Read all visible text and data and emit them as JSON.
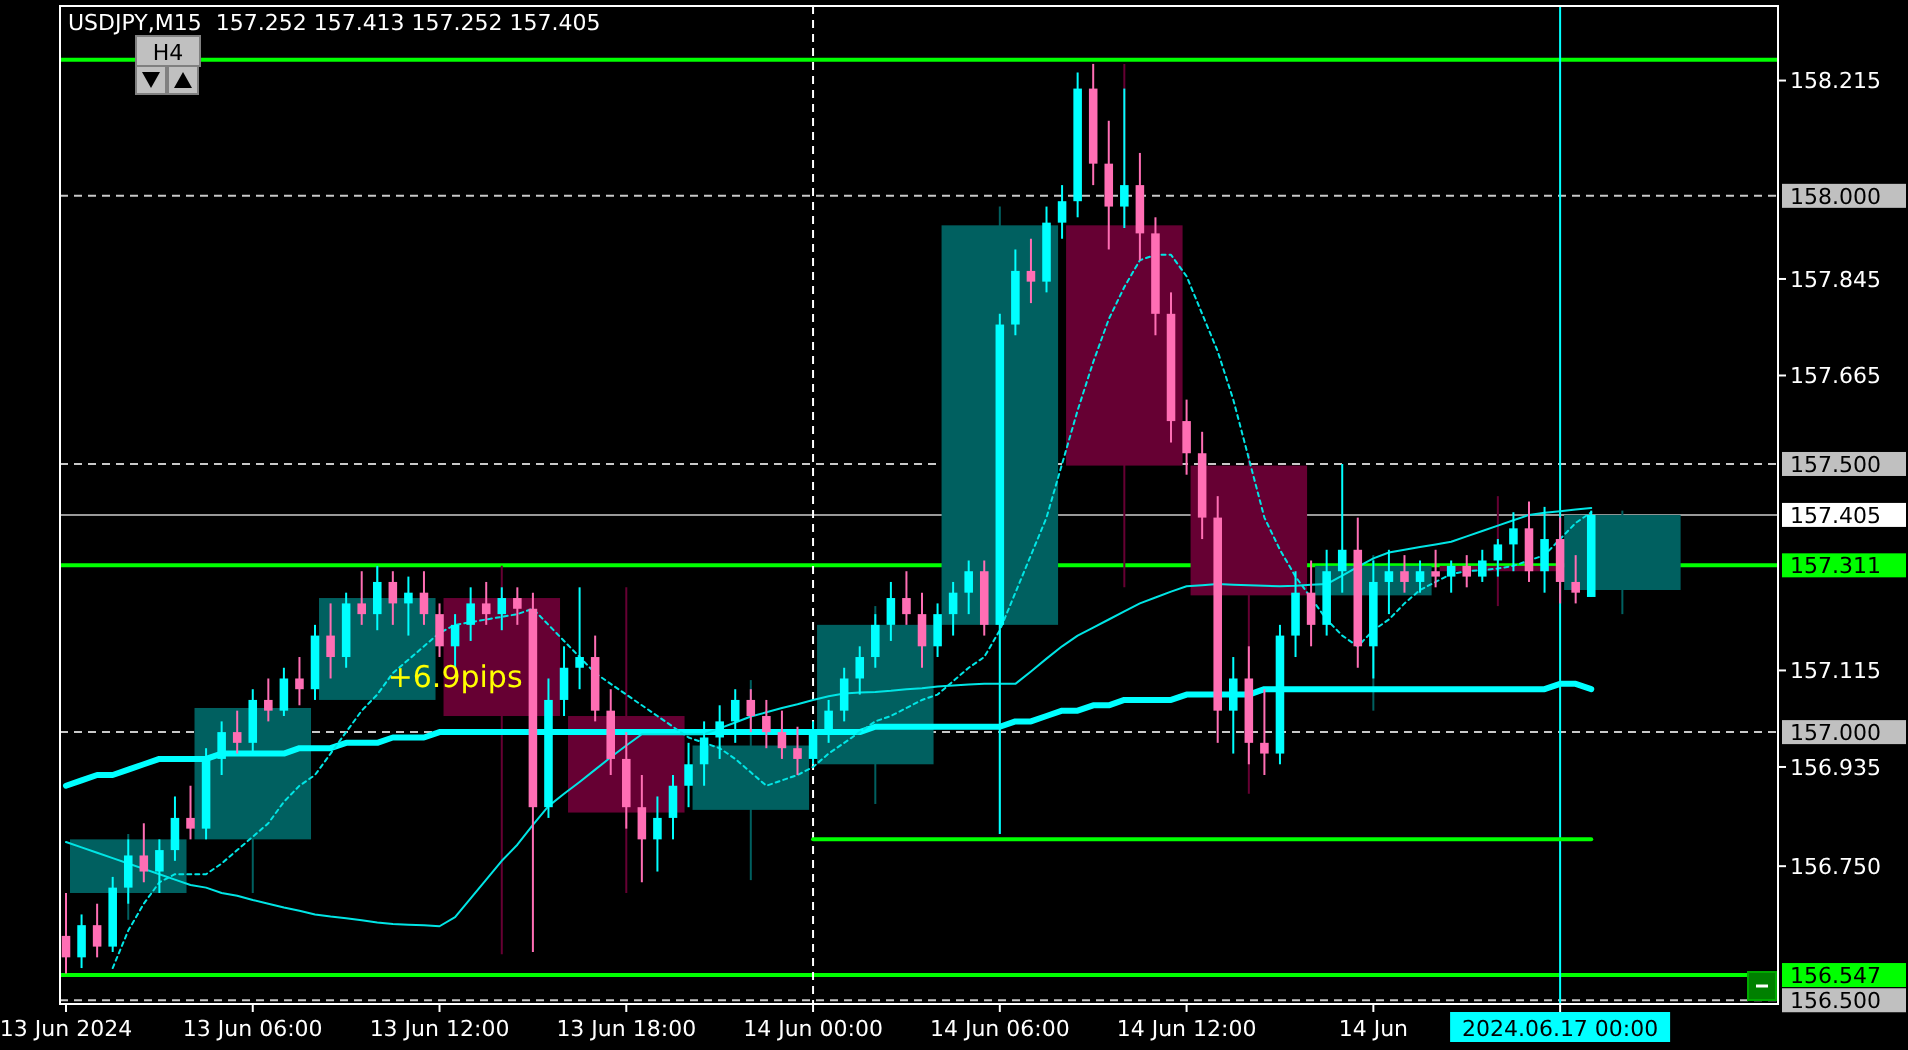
{
  "chart_data": {
    "type": "candlestick",
    "title": "USDJPY,M15  157.252 157.413 157.252 157.405",
    "categories": [
      "13 Jun 2024",
      null,
      null,
      null,
      null,
      null,
      null,
      null,
      null,
      null,
      null,
      null,
      "13 Jun 06:00",
      null,
      null,
      null,
      null,
      null,
      null,
      null,
      null,
      null,
      null,
      null,
      "13 Jun 12:00",
      null,
      null,
      null,
      null,
      null,
      null,
      null,
      null,
      null,
      null,
      null,
      "13 Jun 18:00",
      null,
      null,
      null,
      null,
      null,
      null,
      null,
      null,
      null,
      null,
      null,
      "14 Jun 00:00",
      null,
      null,
      null,
      null,
      null,
      null,
      null,
      null,
      null,
      null,
      null,
      "14 Jun 06:00",
      null,
      null,
      null,
      null,
      null,
      null,
      null,
      null,
      null,
      null,
      null,
      "14 Jun 12:00",
      null,
      null,
      null,
      null,
      null,
      null,
      null,
      null,
      null,
      null,
      null,
      "14 Jun",
      null,
      null,
      null,
      null,
      null,
      null,
      null,
      null,
      null,
      null,
      null,
      "2024.06.17 00:00",
      null,
      null,
      null,
      null,
      null,
      null,
      null
    ],
    "ylim": [
      156.493,
      158.354
    ],
    "yticks": [
      {
        "value": 158.215,
        "label": "158.215"
      },
      {
        "value": 157.845,
        "label": "157.845"
      },
      {
        "value": 157.665,
        "label": "157.665"
      },
      {
        "value": 157.115,
        "label": "157.115"
      },
      {
        "value": 156.935,
        "label": "156.935"
      },
      {
        "value": 156.75,
        "label": "156.750"
      }
    ],
    "annotations": [
      "H4",
      "+6.9pips"
    ],
    "ref_lines": [
      {
        "axis": "y",
        "value": 158.0,
        "label": "158.000",
        "color": "#c8c8c8",
        "line_style": "dashed"
      },
      {
        "axis": "y",
        "value": 157.5,
        "label": "157.500",
        "color": "#c8c8c8",
        "line_style": "dashed"
      },
      {
        "axis": "y",
        "value": 157.0,
        "label": "157.000",
        "color": "#c8c8c8",
        "line_style": "dashed"
      },
      {
        "axis": "y",
        "value": 156.5,
        "label": "156.500",
        "color": "#c8c8c8",
        "line_style": "dashed"
      },
      {
        "axis": "y",
        "value": 157.405,
        "label": "157.405",
        "color": "#9a9a9a",
        "line_style": "solid"
      },
      {
        "axis": "y",
        "value": 157.311,
        "label": "157.311",
        "color": "#00ff00",
        "line_style": "solid"
      },
      {
        "axis": "y",
        "value": 156.547,
        "label": "156.547",
        "color": "#00ff00",
        "line_style": "solid"
      },
      {
        "axis": "y",
        "value": 158.254,
        "color": "#00ff00",
        "line_style": "solid"
      },
      {
        "axis": "x",
        "value": "14 Jun 00:00",
        "color": "#ffffff",
        "line_style": "dashed"
      },
      {
        "axis": "x",
        "value": "2024.06.17 00:00",
        "color": "#00ffff",
        "line_style": "solid"
      }
    ],
    "series": [
      {
        "ohlc": [
          null,
          null,
          null,
          null,
          [
            156.7,
            156.81,
            156.65,
            156.8
          ],
          null,
          null,
          null,
          null,
          null,
          null,
          null,
          [
            156.8,
            157.05,
            156.7,
            157.045
          ],
          null,
          null,
          null,
          null,
          null,
          null,
          null,
          [
            157.06,
            157.31,
            157.06,
            157.25
          ],
          null,
          null,
          null,
          null,
          null,
          null,
          null,
          [
            157.25,
            157.31,
            156.586,
            157.03
          ],
          null,
          null,
          null,
          null,
          null,
          null,
          null,
          [
            157.03,
            157.27,
            156.7,
            156.85
          ],
          null,
          null,
          null,
          null,
          null,
          null,
          null,
          [
            156.855,
            157.097,
            156.724,
            156.975
          ],
          null,
          null,
          null,
          null,
          null,
          null,
          null,
          [
            156.94,
            157.235,
            156.866,
            157.2
          ],
          null,
          null,
          null,
          null,
          null,
          null,
          null,
          [
            157.2,
            157.98,
            156.81,
            157.945
          ],
          null,
          null,
          null,
          null,
          null,
          null,
          null,
          [
            157.945,
            158.246,
            157.27,
            157.497
          ],
          null,
          null,
          null,
          null,
          null,
          null,
          null,
          [
            157.497,
            157.52,
            156.885,
            157.255
          ],
          null,
          null,
          null,
          null,
          null,
          null,
          null,
          [
            157.255,
            157.33,
            157.04,
            157.31
          ],
          null,
          null,
          null,
          null,
          null,
          null,
          null,
          [
            157.31,
            157.44,
            157.235,
            157.3
          ],
          null,
          null,
          null,
          null,
          null,
          null,
          null,
          [
            157.265,
            157.413,
            157.22,
            157.405
          ],
          null,
          null,
          null
        ],
        "colors": [
          null,
          null,
          null,
          null,
          "#006060",
          null,
          null,
          null,
          null,
          null,
          null,
          null,
          "#006060",
          null,
          null,
          null,
          null,
          null,
          null,
          null,
          "#006060",
          null,
          null,
          null,
          null,
          null,
          null,
          null,
          "#660033",
          null,
          null,
          null,
          null,
          null,
          null,
          null,
          "#660033",
          null,
          null,
          null,
          null,
          null,
          null,
          null,
          "#006060",
          null,
          null,
          null,
          null,
          null,
          null,
          null,
          "#006060",
          null,
          null,
          null,
          null,
          null,
          null,
          null,
          "#006060",
          null,
          null,
          null,
          null,
          null,
          null,
          null,
          "#660033",
          null,
          null,
          null,
          null,
          null,
          null,
          null,
          "#660033",
          null,
          null,
          null,
          null,
          null,
          null,
          null,
          "#006060",
          null,
          null,
          null,
          null,
          null,
          null,
          null,
          "#660033",
          null,
          null,
          null,
          null,
          null,
          null,
          null,
          "#006060",
          null,
          null,
          null
        ]
      },
      {
        "type": "line",
        "line_style": "solid",
        "color": "#00ffff",
        "values": [
          156.9,
          156.91,
          156.92,
          156.92,
          156.93,
          156.94,
          156.95,
          156.95,
          156.95,
          156.95,
          156.96,
          156.96,
          156.96,
          156.96,
          156.96,
          156.97,
          156.97,
          156.97,
          156.98,
          156.98,
          156.98,
          156.99,
          156.99,
          156.99,
          157.0,
          157.0,
          157.0,
          157.0,
          157.0,
          157.0,
          157.0,
          157.0,
          157.0,
          157.0,
          157.0,
          157.0,
          157.0,
          157.0,
          157.0,
          157.0,
          157.0,
          157.0,
          157.0,
          157.0,
          157.0,
          157.0,
          157.0,
          157.0,
          157.0,
          157.0,
          157.0,
          157.0,
          157.01,
          157.01,
          157.01,
          157.01,
          157.01,
          157.01,
          157.01,
          157.01,
          157.01,
          157.02,
          157.02,
          157.03,
          157.04,
          157.04,
          157.05,
          157.05,
          157.06,
          157.06,
          157.06,
          157.06,
          157.07,
          157.07,
          157.07,
          157.07,
          157.07,
          157.08,
          157.08,
          157.08,
          157.08,
          157.08,
          157.08,
          157.08,
          157.08,
          157.08,
          157.08,
          157.08,
          157.08,
          157.08,
          157.08,
          157.08,
          157.08,
          157.08,
          157.08,
          157.08,
          157.09,
          157.09,
          157.08,
          null,
          null,
          null,
          null,
          null
        ]
      },
      {
        "type": "line",
        "line_style": "solid",
        "color": "#00e5e5",
        "values": [
          156.795,
          156.785,
          156.775,
          156.765,
          156.755,
          156.745,
          156.735,
          156.725,
          156.715,
          156.71,
          156.7,
          156.695,
          156.687,
          156.68,
          156.673,
          156.667,
          156.66,
          156.656,
          156.653,
          156.649,
          156.645,
          156.642,
          156.641,
          156.64,
          156.638,
          156.655,
          156.69,
          156.725,
          156.76,
          156.79,
          156.827,
          156.862,
          156.885,
          156.907,
          156.93,
          156.953,
          156.975,
          156.996,
          156.996,
          156.996,
          156.996,
          156.996,
          157.007,
          157.018,
          157.029,
          157.037,
          157.045,
          157.052,
          157.06,
          157.067,
          157.072,
          157.074,
          157.075,
          157.077,
          157.08,
          157.082,
          157.085,
          157.087,
          157.089,
          157.09,
          157.09,
          157.09,
          157.113,
          157.137,
          157.16,
          157.18,
          157.195,
          157.21,
          157.225,
          157.24,
          157.251,
          157.262,
          157.272,
          157.274,
          157.276,
          157.275,
          157.274,
          157.273,
          157.272,
          157.273,
          157.275,
          157.276,
          157.292,
          157.308,
          157.324,
          157.335,
          157.34,
          157.345,
          157.35,
          157.355,
          157.365,
          157.375,
          157.385,
          157.395,
          157.405,
          157.409,
          157.412,
          157.415,
          157.418,
          null,
          null,
          null,
          null,
          null
        ]
      },
      {
        "type": "line",
        "line_style": "dotted",
        "color": "#00e5e5",
        "values": [
          null,
          null,
          null,
          156.56,
          156.63,
          156.68,
          156.72,
          156.735,
          156.735,
          156.735,
          156.755,
          156.78,
          156.805,
          156.83,
          156.87,
          156.9,
          156.92,
          156.96,
          157.0,
          157.04,
          157.07,
          157.11,
          157.135,
          157.16,
          157.185,
          157.2,
          157.205,
          157.21,
          157.215,
          157.22,
          157.23,
          157.2,
          157.17,
          157.14,
          157.11,
          157.09,
          157.07,
          157.05,
          157.03,
          157.01,
          156.99,
          156.98,
          156.97,
          156.95,
          156.925,
          156.9,
          156.91,
          156.92,
          156.935,
          156.96,
          156.98,
          157.0,
          157.02,
          157.03,
          157.045,
          157.06,
          157.07,
          157.095,
          157.12,
          157.14,
          157.19,
          157.26,
          157.33,
          157.4,
          157.5,
          157.6,
          157.69,
          157.77,
          157.83,
          157.88,
          157.89,
          157.89,
          157.85,
          157.78,
          157.71,
          157.62,
          157.51,
          157.4,
          157.34,
          157.29,
          157.25,
          157.21,
          157.18,
          157.16,
          157.19,
          157.21,
          157.24,
          157.265,
          157.28,
          157.295,
          157.3,
          157.302,
          157.305,
          157.31,
          157.32,
          157.33,
          157.36,
          157.39,
          157.41,
          null,
          null,
          null,
          null,
          null
        ]
      },
      {
        "type": "line",
        "line_style": "solid",
        "color": "#00ff00",
        "values": [
          null,
          null,
          null,
          null,
          null,
          null,
          null,
          null,
          null,
          null,
          null,
          null,
          null,
          null,
          null,
          null,
          null,
          null,
          null,
          null,
          null,
          null,
          null,
          null,
          null,
          null,
          null,
          null,
          null,
          null,
          null,
          null,
          null,
          null,
          null,
          null,
          null,
          null,
          null,
          null,
          null,
          null,
          null,
          null,
          null,
          null,
          null,
          null,
          156.8,
          156.8,
          156.8,
          156.8,
          156.8,
          156.8,
          156.8,
          156.8,
          156.8,
          156.8,
          156.8,
          156.8,
          156.8,
          156.8,
          156.8,
          156.8,
          156.8,
          156.8,
          156.8,
          156.8,
          156.8,
          156.8,
          156.8,
          156.8,
          156.8,
          156.8,
          156.8,
          156.8,
          156.8,
          156.8,
          156.8,
          156.8,
          156.8,
          156.8,
          156.8,
          156.8,
          156.8,
          156.8,
          156.8,
          156.8,
          156.8,
          156.8,
          156.8,
          156.8,
          156.8,
          156.8,
          156.8,
          156.8,
          156.8,
          156.8,
          156.8,
          null,
          null,
          null,
          null,
          null
        ]
      },
      {
        "ohlc": [
          [
            156.62,
            156.7,
            156.55,
            156.58
          ],
          [
            156.58,
            156.66,
            156.56,
            156.64
          ],
          [
            156.64,
            156.68,
            156.58,
            156.6
          ],
          [
            156.6,
            156.73,
            156.59,
            156.71
          ],
          [
            156.71,
            156.8,
            156.68,
            156.77
          ],
          [
            156.77,
            156.83,
            156.72,
            156.74
          ],
          [
            156.74,
            156.8,
            156.7,
            156.78
          ],
          [
            156.78,
            156.88,
            156.76,
            156.84
          ],
          [
            156.84,
            156.9,
            156.8,
            156.82
          ],
          [
            156.82,
            156.97,
            156.8,
            156.95
          ],
          [
            156.95,
            157.02,
            156.92,
            157.0
          ],
          [
            157.0,
            157.04,
            156.96,
            156.98
          ],
          [
            156.98,
            157.08,
            156.96,
            157.06
          ],
          [
            157.06,
            157.1,
            157.02,
            157.04
          ],
          [
            157.04,
            157.12,
            157.03,
            157.1
          ],
          [
            157.1,
            157.14,
            157.05,
            157.08
          ],
          [
            157.08,
            157.2,
            157.06,
            157.18
          ],
          [
            157.18,
            157.24,
            157.1,
            157.14
          ],
          [
            157.14,
            157.26,
            157.12,
            157.24
          ],
          [
            157.24,
            157.3,
            157.2,
            157.22
          ],
          [
            157.22,
            157.31,
            157.19,
            157.28
          ],
          [
            157.28,
            157.3,
            157.2,
            157.24
          ],
          [
            157.24,
            157.29,
            157.18,
            157.26
          ],
          [
            157.26,
            157.3,
            157.2,
            157.22
          ],
          [
            157.22,
            157.24,
            157.14,
            157.16
          ],
          [
            157.16,
            157.22,
            157.12,
            157.2
          ],
          [
            157.2,
            157.27,
            157.17,
            157.24
          ],
          [
            157.24,
            157.28,
            157.2,
            157.22
          ],
          [
            157.22,
            157.27,
            157.19,
            157.25
          ],
          [
            157.25,
            157.27,
            157.2,
            157.23
          ],
          [
            157.23,
            157.26,
            156.59,
            156.86
          ],
          [
            156.86,
            157.1,
            156.84,
            157.06
          ],
          [
            157.06,
            157.16,
            157.03,
            157.12
          ],
          [
            157.12,
            157.27,
            157.08,
            157.14
          ],
          [
            157.14,
            157.18,
            157.02,
            157.04
          ],
          [
            157.04,
            157.08,
            156.92,
            156.95
          ],
          [
            156.95,
            157.0,
            156.82,
            156.86
          ],
          [
            156.86,
            156.92,
            156.72,
            156.8
          ],
          [
            156.8,
            156.88,
            156.74,
            156.84
          ],
          [
            156.84,
            156.92,
            156.8,
            156.9
          ],
          [
            156.9,
            156.98,
            156.86,
            156.94
          ],
          [
            156.94,
            157.02,
            156.9,
            156.99
          ],
          [
            156.99,
            157.05,
            156.95,
            157.02
          ],
          [
            157.02,
            157.08,
            156.98,
            157.06
          ],
          [
            157.06,
            157.08,
            157.0,
            157.03
          ],
          [
            157.03,
            157.06,
            156.97,
            157.0
          ],
          [
            157.0,
            157.04,
            156.95,
            156.97
          ],
          [
            156.97,
            157.01,
            156.92,
            156.95
          ],
          [
            156.95,
            157.02,
            156.94,
            157.0
          ],
          [
            157.0,
            157.06,
            156.98,
            157.04
          ],
          [
            157.04,
            157.12,
            157.02,
            157.1
          ],
          [
            157.1,
            157.16,
            157.07,
            157.14
          ],
          [
            157.14,
            157.22,
            157.12,
            157.2
          ],
          [
            157.2,
            157.28,
            157.17,
            157.25
          ],
          [
            157.25,
            157.3,
            157.2,
            157.22
          ],
          [
            157.22,
            157.26,
            157.12,
            157.16
          ],
          [
            157.16,
            157.24,
            157.14,
            157.22
          ],
          [
            157.22,
            157.28,
            157.18,
            157.26
          ],
          [
            157.26,
            157.32,
            157.22,
            157.3
          ],
          [
            157.3,
            157.32,
            157.18,
            157.2
          ],
          [
            157.2,
            157.78,
            156.81,
            157.76
          ],
          [
            157.76,
            157.9,
            157.74,
            157.86
          ],
          [
            157.86,
            157.92,
            157.8,
            157.84
          ],
          [
            157.84,
            157.98,
            157.82,
            157.95
          ],
          [
            157.95,
            158.02,
            157.92,
            157.99
          ],
          [
            157.99,
            158.23,
            157.96,
            158.2
          ],
          [
            158.2,
            158.246,
            158.02,
            158.06
          ],
          [
            158.06,
            158.14,
            157.9,
            157.98
          ],
          [
            157.98,
            158.2,
            157.94,
            158.02
          ],
          [
            158.02,
            158.08,
            157.88,
            157.93
          ],
          [
            157.93,
            157.96,
            157.74,
            157.78
          ],
          [
            157.78,
            157.82,
            157.54,
            157.58
          ],
          [
            157.58,
            157.62,
            157.48,
            157.52
          ],
          [
            157.52,
            157.56,
            157.36,
            157.4
          ],
          [
            157.4,
            157.44,
            156.98,
            157.04
          ],
          [
            157.04,
            157.14,
            156.96,
            157.1
          ],
          [
            157.1,
            157.16,
            156.94,
            156.98
          ],
          [
            156.98,
            157.08,
            156.92,
            156.96
          ],
          [
            156.96,
            157.2,
            156.94,
            157.18
          ],
          [
            157.18,
            157.3,
            157.14,
            157.26
          ],
          [
            157.26,
            157.32,
            157.16,
            157.2
          ],
          [
            157.2,
            157.34,
            157.18,
            157.3
          ],
          [
            157.3,
            157.5,
            157.26,
            157.34
          ],
          [
            157.34,
            157.4,
            157.12,
            157.16
          ],
          [
            157.16,
            157.32,
            157.1,
            157.28
          ],
          [
            157.28,
            157.34,
            157.22,
            157.3
          ],
          [
            157.3,
            157.33,
            157.26,
            157.28
          ],
          [
            157.28,
            157.32,
            157.26,
            157.3
          ],
          [
            157.3,
            157.34,
            157.27,
            157.29
          ],
          [
            157.29,
            157.32,
            157.26,
            157.31
          ],
          [
            157.31,
            157.33,
            157.27,
            157.29
          ],
          [
            157.29,
            157.34,
            157.28,
            157.32
          ],
          [
            157.32,
            157.36,
            157.29,
            157.35
          ],
          [
            157.35,
            157.41,
            157.3,
            157.38
          ],
          [
            157.38,
            157.43,
            157.28,
            157.3
          ],
          [
            157.3,
            157.42,
            157.26,
            157.36
          ],
          [
            157.36,
            157.4,
            157.24,
            157.28
          ],
          [
            157.28,
            157.33,
            157.24,
            157.26
          ],
          [
            157.252,
            157.413,
            157.252,
            157.405
          ],
          null,
          null,
          null,
          null,
          null
        ],
        "colors": [
          "#ff6eb4",
          "#00ffff",
          "#ff6eb4",
          "#00ffff",
          "#00ffff",
          "#ff6eb4",
          "#00ffff",
          "#00ffff",
          "#ff6eb4",
          "#00ffff",
          "#00ffff",
          "#ff6eb4",
          "#00ffff",
          "#ff6eb4",
          "#00ffff",
          "#ff6eb4",
          "#00ffff",
          "#ff6eb4",
          "#00ffff",
          "#ff6eb4",
          "#00ffff",
          "#ff6eb4",
          "#00ffff",
          "#ff6eb4",
          "#ff6eb4",
          "#00ffff",
          "#00ffff",
          "#ff6eb4",
          "#00ffff",
          "#ff6eb4",
          "#ff6eb4",
          "#00ffff",
          "#00ffff",
          "#00ffff",
          "#ff6eb4",
          "#ff6eb4",
          "#ff6eb4",
          "#ff6eb4",
          "#00ffff",
          "#00ffff",
          "#00ffff",
          "#00ffff",
          "#00ffff",
          "#00ffff",
          "#ff6eb4",
          "#ff6eb4",
          "#ff6eb4",
          "#ff6eb4",
          "#00ffff",
          "#00ffff",
          "#00ffff",
          "#00ffff",
          "#00ffff",
          "#00ffff",
          "#ff6eb4",
          "#ff6eb4",
          "#00ffff",
          "#00ffff",
          "#00ffff",
          "#ff6eb4",
          "#00ffff",
          "#00ffff",
          "#ff6eb4",
          "#00ffff",
          "#00ffff",
          "#00ffff",
          "#ff6eb4",
          "#ff6eb4",
          "#00ffff",
          "#ff6eb4",
          "#ff6eb4",
          "#ff6eb4",
          "#ff6eb4",
          "#ff6eb4",
          "#ff6eb4",
          "#00ffff",
          "#ff6eb4",
          "#ff6eb4",
          "#00ffff",
          "#00ffff",
          "#ff6eb4",
          "#00ffff",
          "#00ffff",
          "#ff6eb4",
          "#00ffff",
          "#00ffff",
          "#ff6eb4",
          "#00ffff",
          "#ff6eb4",
          "#00ffff",
          "#ff6eb4",
          "#00ffff",
          "#00ffff",
          "#00ffff",
          "#ff6eb4",
          "#00ffff",
          "#ff6eb4",
          "#ff6eb4",
          "#00ffff",
          null,
          null,
          null,
          null,
          null
        ]
      }
    ]
  }
}
